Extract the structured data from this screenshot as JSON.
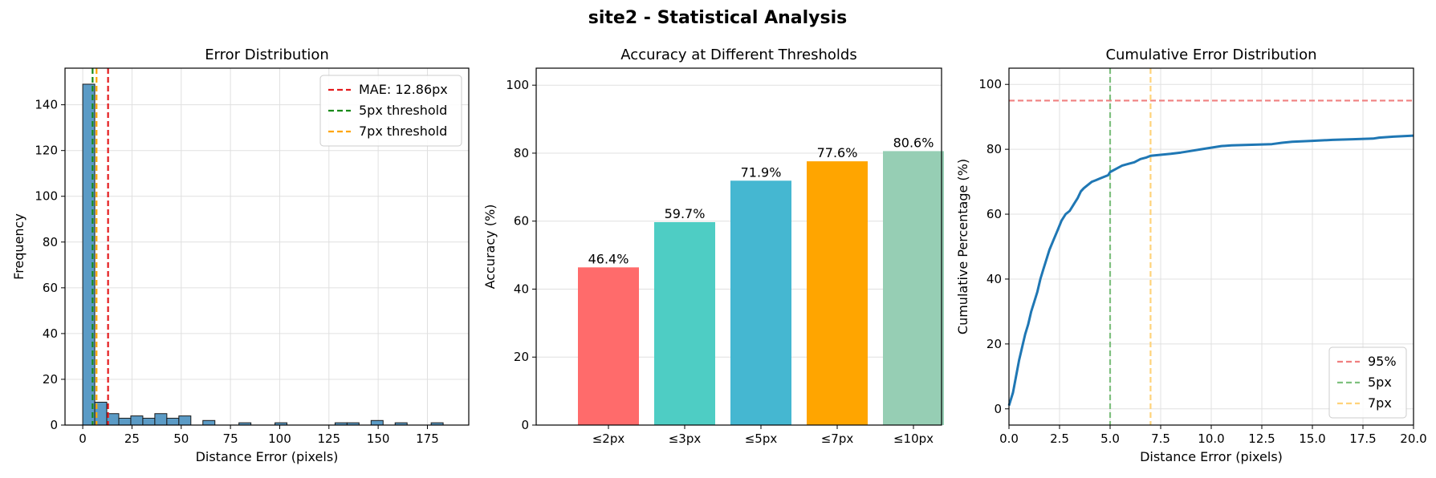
{
  "figure_title": "site2 - Statistical Analysis",
  "colors": {
    "hist_fill": "#5b9bc6",
    "hist_edge": "#1a1a1a",
    "mae": "#e41a1c",
    "t5": "#1a8a1a",
    "t7": "#ffa500",
    "cdf": "#1f77b4",
    "ref95": "#f08080",
    "ref5": "#7ec07e",
    "ref7": "#ffd37a",
    "grid": "#e0e0e0"
  },
  "chart_data": [
    {
      "type": "bar",
      "subtype": "histogram",
      "title": "Error Distribution",
      "xlabel": "Distance Error (pixels)",
      "ylabel": "Frequency",
      "xlim": [
        -9,
        196
      ],
      "ylim": [
        0,
        156
      ],
      "xticks": [
        0,
        25,
        50,
        75,
        100,
        125,
        150,
        175
      ],
      "yticks": [
        0,
        20,
        40,
        60,
        80,
        100,
        120,
        140
      ],
      "grid": true,
      "legend_position": "top-right",
      "bin_start": 0,
      "bin_width": 6.1,
      "counts": [
        149,
        10,
        5,
        3,
        4,
        3,
        5,
        3,
        4,
        0,
        2,
        0,
        0,
        1,
        0,
        0,
        1,
        0,
        0,
        0,
        0,
        1,
        1,
        0,
        2,
        0,
        1,
        0,
        0,
        1
      ],
      "vlines": [
        {
          "x": 12.86,
          "label": "MAE: 12.86px",
          "color_key": "mae"
        },
        {
          "x": 5,
          "label": "5px threshold",
          "color_key": "t5"
        },
        {
          "x": 7,
          "label": "7px threshold",
          "color_key": "t7"
        }
      ]
    },
    {
      "type": "bar",
      "title": "Accuracy at Different Thresholds",
      "xlabel": "",
      "ylabel": "Accuracy (%)",
      "ylim": [
        0,
        105
      ],
      "yticks": [
        0,
        20,
        40,
        60,
        80,
        100
      ],
      "grid": true,
      "categories": [
        "≤2px",
        "≤3px",
        "≤5px",
        "≤7px",
        "≤10px"
      ],
      "values": [
        46.4,
        59.7,
        71.9,
        77.6,
        80.6
      ],
      "data_labels": [
        "46.4%",
        "59.7%",
        "71.9%",
        "77.6%",
        "80.6%"
      ],
      "bar_colors": [
        "#ff6b6b",
        "#4ecdc4",
        "#45b7d1",
        "#ffa500",
        "#96ceb4"
      ]
    },
    {
      "type": "line",
      "title": "Cumulative Error Distribution",
      "xlabel": "Distance Error (pixels)",
      "ylabel": "Cumulative Percentage (%)",
      "xlim": [
        0,
        20
      ],
      "ylim": [
        -5,
        105
      ],
      "xticks": [
        0.0,
        2.5,
        5.0,
        7.5,
        10.0,
        12.5,
        15.0,
        17.5,
        20.0
      ],
      "xtick_labels": [
        "0.0",
        "2.5",
        "5.0",
        "7.5",
        "10.0",
        "12.5",
        "15.0",
        "17.5",
        "20.0"
      ],
      "yticks": [
        0,
        20,
        40,
        60,
        80,
        100
      ],
      "grid": true,
      "legend_position": "bottom-right",
      "series": [
        {
          "x": [
            0,
            0.2,
            0.35,
            0.5,
            0.65,
            0.8,
            0.95,
            1.1,
            1.25,
            1.4,
            1.55,
            1.7,
            1.85,
            2.0,
            2.2,
            2.4,
            2.6,
            2.8,
            3.0,
            3.2,
            3.4,
            3.55,
            3.7,
            3.9,
            4.1,
            4.3,
            4.5,
            4.7,
            4.9,
            5.0,
            5.3,
            5.6,
            5.9,
            6.2,
            6.5,
            6.8,
            7.0,
            7.5,
            8.0,
            8.5,
            9.0,
            9.5,
            10.0,
            10.5,
            11.0,
            12.0,
            13.0,
            13.5,
            14.0,
            15.0,
            16.0,
            17.0,
            18.0,
            18.3,
            19.0,
            20.0
          ],
          "y": [
            1,
            5,
            10,
            15,
            19,
            23,
            26,
            30,
            33,
            36,
            40,
            43,
            46,
            49,
            52,
            55,
            58,
            60,
            61,
            63,
            65,
            67,
            68,
            69,
            70,
            70.5,
            71,
            71.5,
            72,
            73,
            74,
            75,
            75.5,
            76,
            77,
            77.5,
            78,
            78.3,
            78.6,
            79,
            79.5,
            80,
            80.5,
            81,
            81.2,
            81.4,
            81.6,
            82,
            82.3,
            82.6,
            82.9,
            83.1,
            83.3,
            83.6,
            83.9,
            84.2
          ]
        }
      ],
      "hlines": [
        {
          "y": 95,
          "label": "95%",
          "color_key": "ref95"
        }
      ],
      "vlines": [
        {
          "x": 5,
          "label": "5px",
          "color_key": "ref5"
        },
        {
          "x": 7,
          "label": "7px",
          "color_key": "ref7"
        }
      ]
    }
  ]
}
